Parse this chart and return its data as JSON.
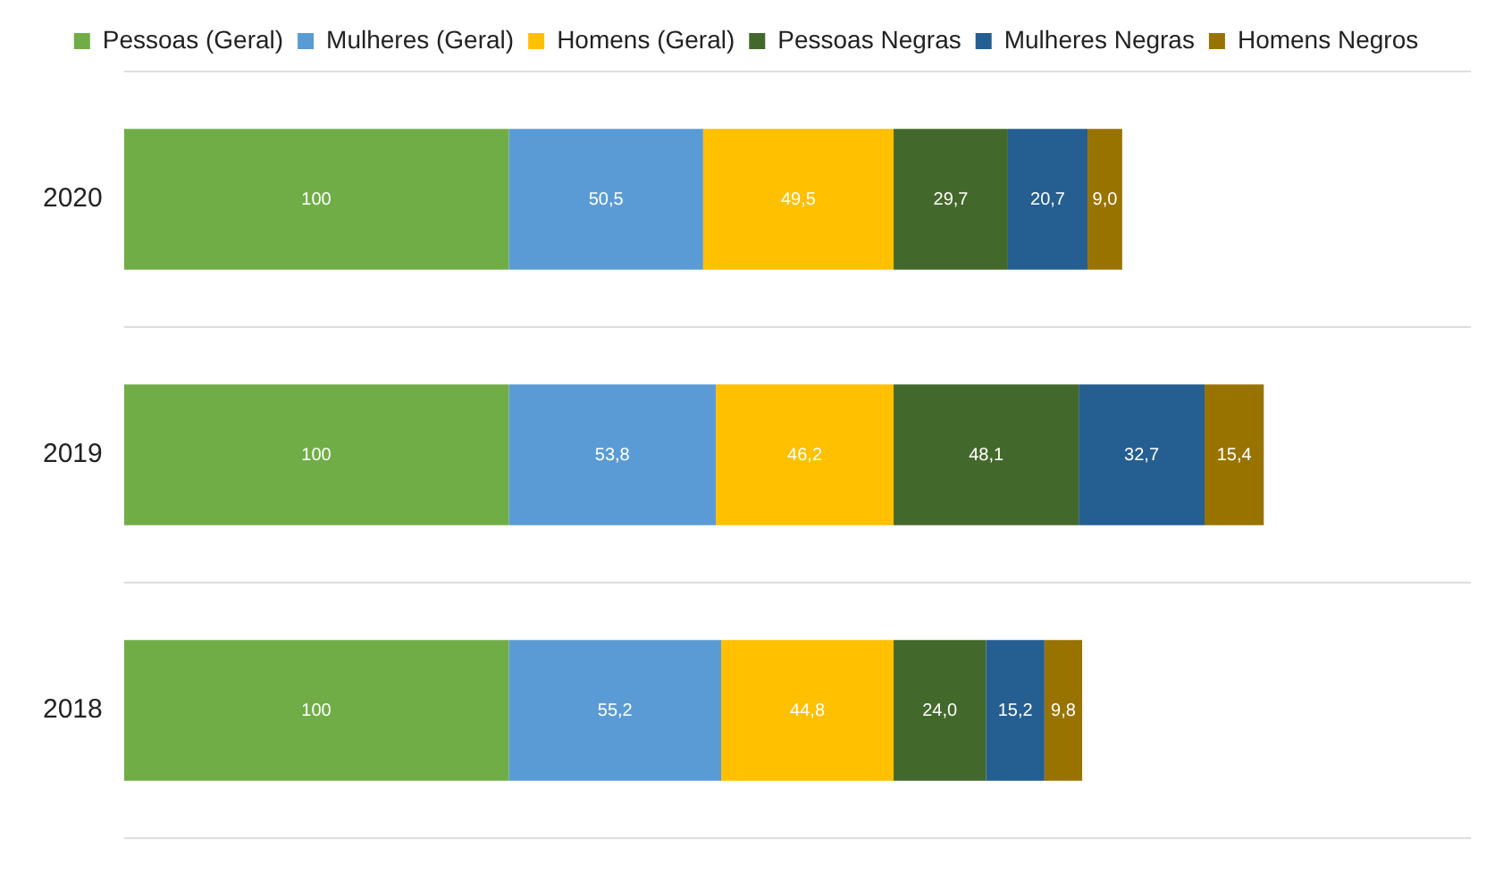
{
  "chart_data": {
    "type": "bar",
    "orientation": "horizontal",
    "stacked": true,
    "categories": [
      "2020",
      "2019",
      "2018"
    ],
    "series": [
      {
        "name": "Pessoas (Geral)",
        "color": "#70ad47",
        "values": [
          100,
          100,
          100
        ],
        "value_labels": [
          "100",
          "100",
          "100"
        ]
      },
      {
        "name": "Mulheres (Geral)",
        "color": "#5b9bd5",
        "values": [
          50.5,
          53.8,
          55.2
        ],
        "value_labels": [
          "50,5",
          "53,8",
          "55,2"
        ]
      },
      {
        "name": "Homens (Geral)",
        "color": "#ffc000",
        "values": [
          49.5,
          46.2,
          44.8
        ],
        "value_labels": [
          "49,5",
          "46,2",
          "44,8"
        ]
      },
      {
        "name": "Pessoas Negras",
        "color": "#43682b",
        "values": [
          29.7,
          48.1,
          24.0
        ],
        "value_labels": [
          "29,7",
          "48,1",
          "24,0"
        ]
      },
      {
        "name": "Mulheres Negras",
        "color": "#255e91",
        "values": [
          20.7,
          32.7,
          15.2
        ],
        "value_labels": [
          "20,7",
          "32,7",
          "15,2"
        ]
      },
      {
        "name": "Homens Negros",
        "color": "#997300",
        "values": [
          9.0,
          15.4,
          9.8
        ],
        "value_labels": [
          "9,0",
          "15,4",
          "9,8"
        ]
      }
    ],
    "xlim": [
      0,
      350
    ],
    "tick_labels": "y",
    "grid": "y",
    "legend": "top"
  }
}
